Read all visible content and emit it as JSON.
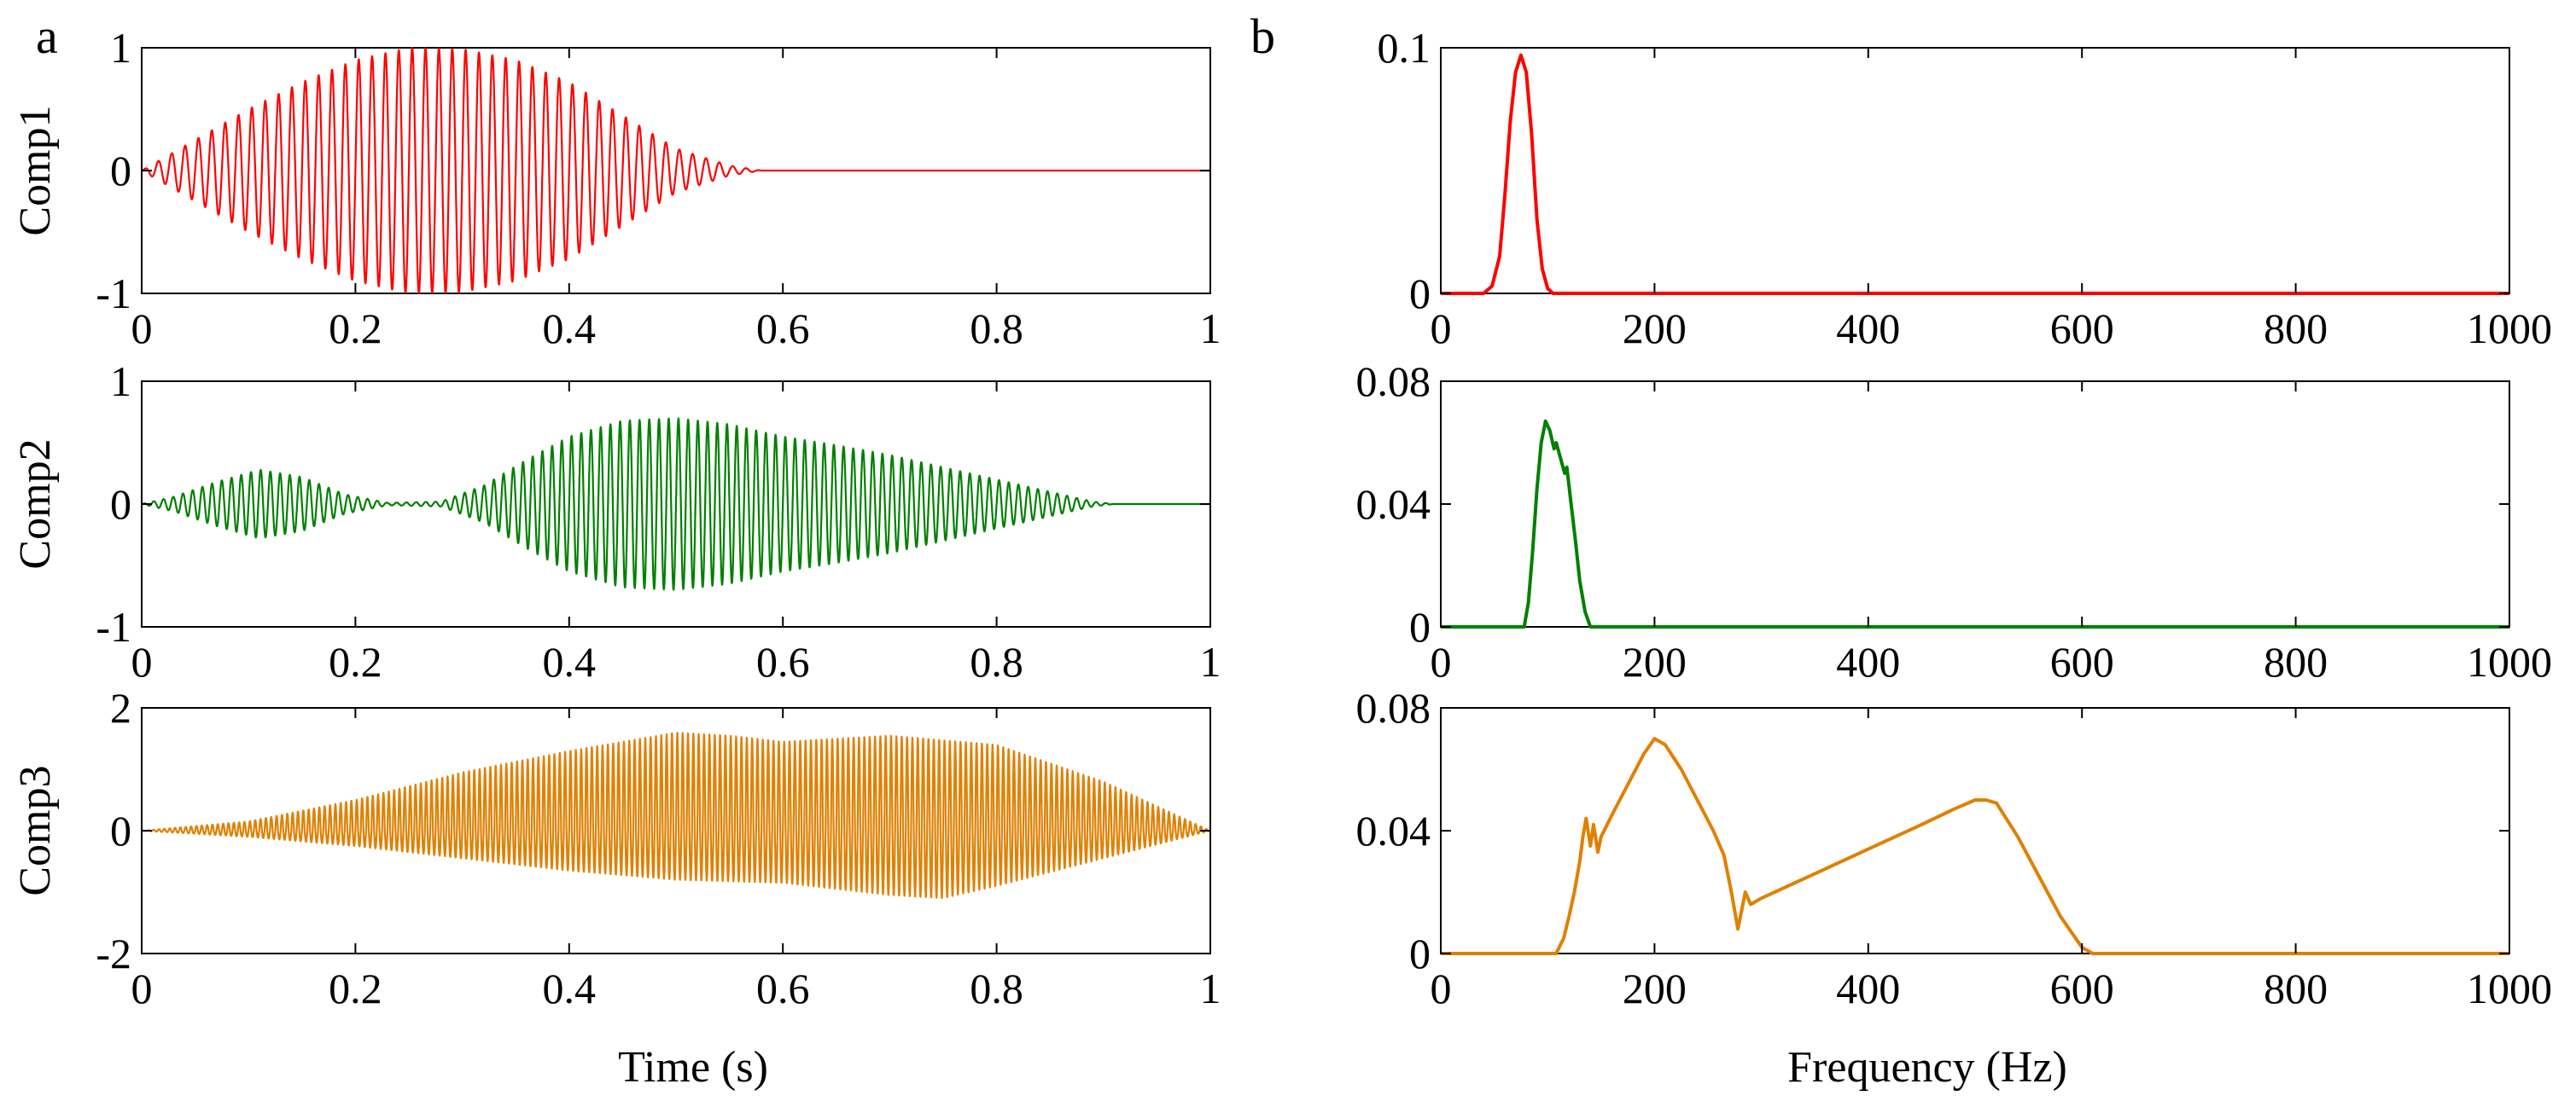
{
  "panel_letters": [
    "a",
    "b"
  ],
  "x_titles": {
    "time": "Time (s)",
    "frequency": "Frequency (Hz)"
  },
  "chart_data": [
    {
      "type": "line",
      "panel": "a",
      "id": "a1",
      "signal": "Comp1",
      "ylabel": "Comp1",
      "xlabel": "",
      "color": "#ff0000",
      "xlim": [
        0,
        1
      ],
      "ylim": [
        -1,
        1
      ],
      "xticks": [
        "0",
        "0.2",
        "0.4",
        "0.6",
        "0.8",
        "1"
      ],
      "xtick_values": [
        0,
        0.2,
        0.4,
        0.6,
        0.8,
        1
      ],
      "yticks": [
        "1",
        "0",
        "-1"
      ],
      "ytick_values": [
        1,
        0,
        -1
      ],
      "carrier_hz": 80,
      "envelope": {
        "x": [
          0,
          0.05,
          0.1,
          0.15,
          0.2,
          0.25,
          0.3,
          0.35,
          0.4,
          0.45,
          0.5,
          0.55,
          0.58,
          0.6,
          1.0
        ],
        "y": [
          0,
          0.25,
          0.5,
          0.72,
          0.9,
          1.0,
          0.99,
          0.9,
          0.72,
          0.45,
          0.18,
          0.04,
          0,
          0,
          0
        ]
      }
    },
    {
      "type": "line",
      "panel": "a",
      "id": "a2",
      "signal": "Comp2",
      "ylabel": "Comp2",
      "xlabel": "",
      "color": "#008000",
      "xlim": [
        0,
        1
      ],
      "ylim": [
        -1,
        1
      ],
      "xticks": [
        "0",
        "0.2",
        "0.4",
        "0.6",
        "0.8",
        "1"
      ],
      "xtick_values": [
        0,
        0.2,
        0.4,
        0.6,
        0.8,
        1
      ],
      "yticks": [
        "1",
        "0",
        "-1"
      ],
      "ytick_values": [
        1,
        0,
        -1
      ],
      "carrier_hz": 110,
      "envelope": {
        "x": [
          0,
          0.03,
          0.07,
          0.11,
          0.15,
          0.19,
          0.23,
          0.28,
          0.32,
          0.36,
          0.4,
          0.45,
          0.5,
          0.55,
          0.6,
          0.65,
          0.7,
          0.75,
          0.8,
          0.85,
          0.89,
          0.91,
          1.0
        ],
        "y": [
          0,
          0.06,
          0.18,
          0.28,
          0.22,
          0.08,
          0.01,
          0.02,
          0.15,
          0.36,
          0.55,
          0.68,
          0.7,
          0.65,
          0.55,
          0.48,
          0.4,
          0.3,
          0.2,
          0.1,
          0.02,
          0,
          0
        ]
      }
    },
    {
      "type": "line",
      "panel": "a",
      "id": "a3",
      "signal": "Comp3",
      "ylabel": "Comp3",
      "xlabel": "Time (s)",
      "color": "#e08000",
      "xlim": [
        0,
        1
      ],
      "ylim": [
        -2,
        2
      ],
      "xticks": [
        "0",
        "0.2",
        "0.4",
        "0.6",
        "0.8",
        "1"
      ],
      "xtick_values": [
        0,
        0.2,
        0.4,
        0.6,
        0.8,
        1
      ],
      "yticks": [
        "2",
        "0",
        "-2"
      ],
      "ytick_values": [
        2,
        0,
        -2
      ],
      "carrier_hz": 200,
      "envelope_upper": {
        "x": [
          0,
          0.1,
          0.2,
          0.3,
          0.4,
          0.5,
          0.55,
          0.6,
          0.7,
          0.8,
          0.9,
          1.0
        ],
        "y": [
          0,
          0.15,
          0.5,
          0.95,
          1.3,
          1.6,
          1.55,
          1.45,
          1.55,
          1.4,
          0.8,
          0
        ]
      },
      "envelope_lower": {
        "x": [
          0,
          0.1,
          0.2,
          0.3,
          0.4,
          0.5,
          0.6,
          0.7,
          0.75,
          0.8,
          0.9,
          1.0
        ],
        "y": [
          0,
          -0.1,
          -0.25,
          -0.45,
          -0.65,
          -0.8,
          -0.85,
          -1.05,
          -1.1,
          -0.9,
          -0.45,
          0
        ]
      }
    },
    {
      "type": "line",
      "panel": "b",
      "id": "b1",
      "signal": "Comp1",
      "ylabel": "",
      "xlabel": "",
      "color": "#ff0000",
      "xlim": [
        0,
        1000
      ],
      "ylim": [
        0,
        0.1
      ],
      "xticks": [
        "0",
        "200",
        "400",
        "600",
        "800",
        "1000"
      ],
      "xtick_values": [
        0,
        200,
        400,
        600,
        800,
        1000
      ],
      "yticks": [
        "0.1",
        "0"
      ],
      "ytick_values": [
        0.1,
        0
      ],
      "x": [
        0,
        40,
        48,
        55,
        60,
        65,
        70,
        75,
        80,
        85,
        90,
        95,
        100,
        105,
        1000
      ],
      "y": [
        0,
        0,
        0.003,
        0.015,
        0.04,
        0.07,
        0.09,
        0.097,
        0.09,
        0.065,
        0.03,
        0.01,
        0.002,
        0,
        0
      ]
    },
    {
      "type": "line",
      "panel": "b",
      "id": "b2",
      "signal": "Comp2",
      "ylabel": "",
      "xlabel": "",
      "color": "#008000",
      "xlim": [
        0,
        1000
      ],
      "ylim": [
        0,
        0.08
      ],
      "xticks": [
        "0",
        "200",
        "400",
        "600",
        "800",
        "1000"
      ],
      "xtick_values": [
        0,
        200,
        400,
        600,
        800,
        1000
      ],
      "yticks": [
        "0.08",
        "0.04",
        "0"
      ],
      "ytick_values": [
        0.08,
        0.04,
        0
      ],
      "x": [
        0,
        78,
        82,
        86,
        90,
        94,
        98,
        102,
        106,
        108,
        112,
        116,
        118,
        122,
        126,
        130,
        135,
        140,
        1000
      ],
      "y": [
        0,
        0,
        0.008,
        0.025,
        0.045,
        0.06,
        0.067,
        0.064,
        0.058,
        0.06,
        0.055,
        0.05,
        0.052,
        0.04,
        0.028,
        0.015,
        0.005,
        0,
        0
      ]
    },
    {
      "type": "line",
      "panel": "b",
      "id": "b3",
      "signal": "Comp3",
      "ylabel": "",
      "xlabel": "Frequency (Hz)",
      "color": "#e08000",
      "xlim": [
        0,
        1000
      ],
      "ylim": [
        0,
        0.08
      ],
      "xticks": [
        "0",
        "200",
        "400",
        "600",
        "800",
        "1000"
      ],
      "xtick_values": [
        0,
        200,
        400,
        600,
        800,
        1000
      ],
      "yticks": [
        "0.08",
        "0.04",
        "0"
      ],
      "ytick_values": [
        0.08,
        0.04,
        0
      ],
      "x": [
        0,
        108,
        115,
        120,
        125,
        130,
        133,
        136,
        140,
        143,
        147,
        150,
        160,
        175,
        190,
        200,
        210,
        225,
        240,
        255,
        265,
        272,
        278,
        285,
        290,
        300,
        350,
        400,
        450,
        480,
        500,
        510,
        520,
        540,
        560,
        580,
        600,
        610,
        1000
      ],
      "y": [
        0,
        0,
        0.005,
        0.012,
        0.02,
        0.03,
        0.038,
        0.044,
        0.035,
        0.042,
        0.033,
        0.038,
        0.045,
        0.055,
        0.065,
        0.07,
        0.068,
        0.06,
        0.05,
        0.04,
        0.032,
        0.02,
        0.008,
        0.02,
        0.016,
        0.018,
        0.026,
        0.034,
        0.042,
        0.047,
        0.05,
        0.05,
        0.049,
        0.038,
        0.025,
        0.012,
        0.002,
        0,
        0
      ]
    }
  ]
}
